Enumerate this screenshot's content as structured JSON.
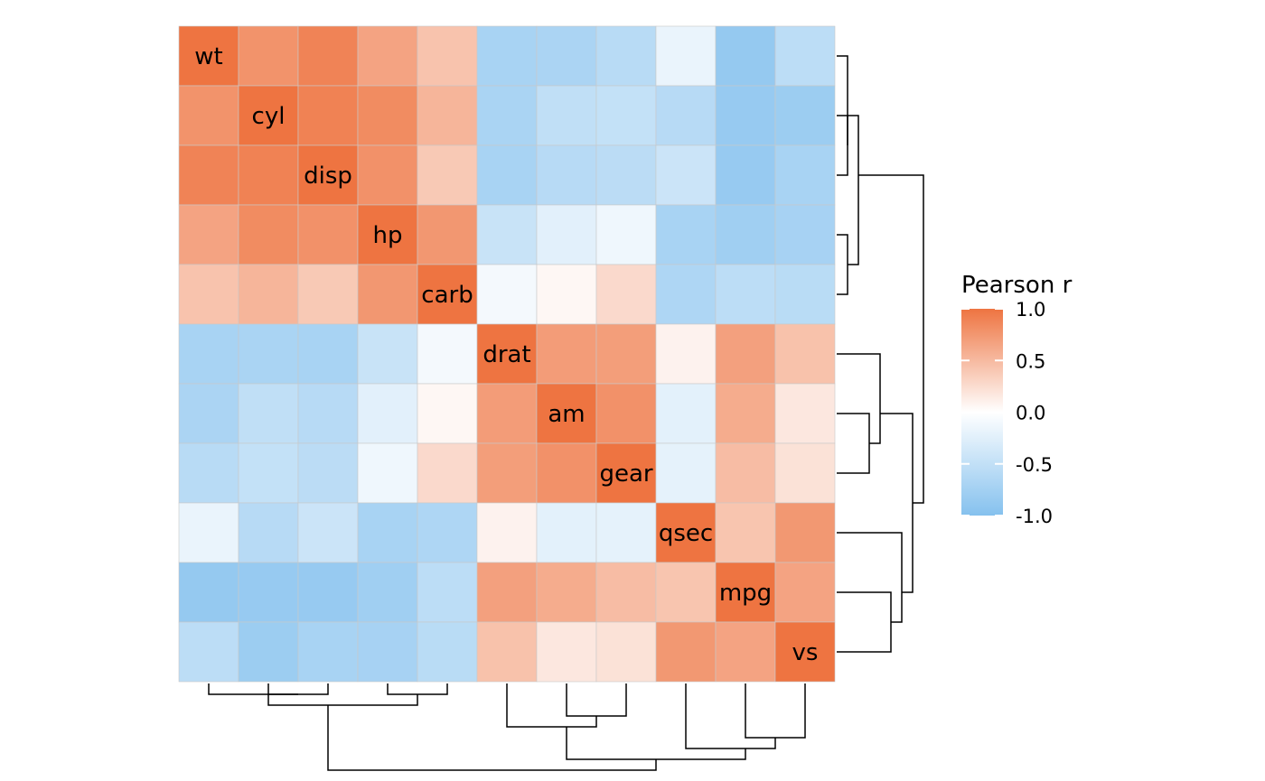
{
  "chart_data": {
    "type": "heatmap",
    "title": "",
    "variables": [
      "wt",
      "cyl",
      "disp",
      "hp",
      "carb",
      "drat",
      "am",
      "gear",
      "qsec",
      "mpg",
      "vs"
    ],
    "values": [
      [
        1.0,
        0.78,
        0.89,
        0.66,
        0.43,
        -0.71,
        -0.69,
        -0.58,
        -0.17,
        -0.87,
        -0.55
      ],
      [
        0.78,
        1.0,
        0.9,
        0.83,
        0.53,
        -0.7,
        -0.52,
        -0.49,
        -0.59,
        -0.85,
        -0.81
      ],
      [
        0.89,
        0.9,
        1.0,
        0.79,
        0.39,
        -0.71,
        -0.59,
        -0.56,
        -0.43,
        -0.85,
        -0.71
      ],
      [
        0.66,
        0.83,
        0.79,
        1.0,
        0.75,
        -0.45,
        -0.24,
        -0.13,
        -0.71,
        -0.78,
        -0.72
      ],
      [
        0.43,
        0.53,
        0.39,
        0.75,
        1.0,
        -0.09,
        0.06,
        0.27,
        -0.66,
        -0.55,
        -0.57
      ],
      [
        -0.71,
        -0.7,
        -0.71,
        -0.45,
        -0.09,
        1.0,
        0.71,
        0.7,
        0.09,
        0.68,
        0.44
      ],
      [
        -0.69,
        -0.52,
        -0.59,
        -0.24,
        0.06,
        0.71,
        1.0,
        0.79,
        -0.23,
        0.6,
        0.17
      ],
      [
        -0.58,
        -0.49,
        -0.56,
        -0.13,
        0.27,
        0.7,
        0.79,
        1.0,
        -0.21,
        0.48,
        0.21
      ],
      [
        -0.17,
        -0.59,
        -0.43,
        -0.71,
        -0.66,
        0.09,
        -0.23,
        -0.21,
        1.0,
        0.42,
        0.74
      ],
      [
        -0.87,
        -0.85,
        -0.85,
        -0.78,
        -0.55,
        0.68,
        0.6,
        0.48,
        0.42,
        1.0,
        0.66
      ],
      [
        -0.55,
        -0.81,
        -0.71,
        -0.72,
        -0.57,
        0.44,
        0.17,
        0.21,
        0.74,
        0.66,
        1.0
      ]
    ],
    "dendrogram": {
      "merges": [
        [
          0,
          [
            1,
            2
          ]
        ],
        [
          [
            0,
            [
              1,
              2
            ]
          ],
          [
            3,
            4
          ]
        ],
        [
          6,
          7
        ],
        [
          5,
          [
            6,
            7
          ]
        ],
        [
          9,
          10
        ],
        [
          8,
          [
            9,
            10
          ]
        ],
        [
          [
            5,
            [
              6,
              7
            ]
          ],
          [
            8,
            [
              9,
              10
            ]
          ]
        ],
        [
          [
            [
              0,
              [
                1,
                2
              ]
            ],
            [
              3,
              4
            ]
          ],
          [
            [
              5,
              [
                6,
                7
              ]
            ],
            [
              8,
              [
                9,
                10
              ]
            ]
          ]
        ]
      ]
    },
    "legend": {
      "title": "Pearson r",
      "ticks": [
        1.0,
        0.5,
        0.0,
        -0.5,
        -1.0
      ],
      "tick_labels": [
        "1.0",
        "0.5",
        "0.0",
        "-0.5",
        "-1.0"
      ],
      "range": [
        -1.0,
        1.0
      ],
      "placement": "right"
    },
    "colors": {
      "low": "#85c1ee",
      "mid": "#ffffff",
      "high": "#ee7441",
      "cell_border": "#c8c8c8",
      "dendrogram": "#000000"
    }
  }
}
